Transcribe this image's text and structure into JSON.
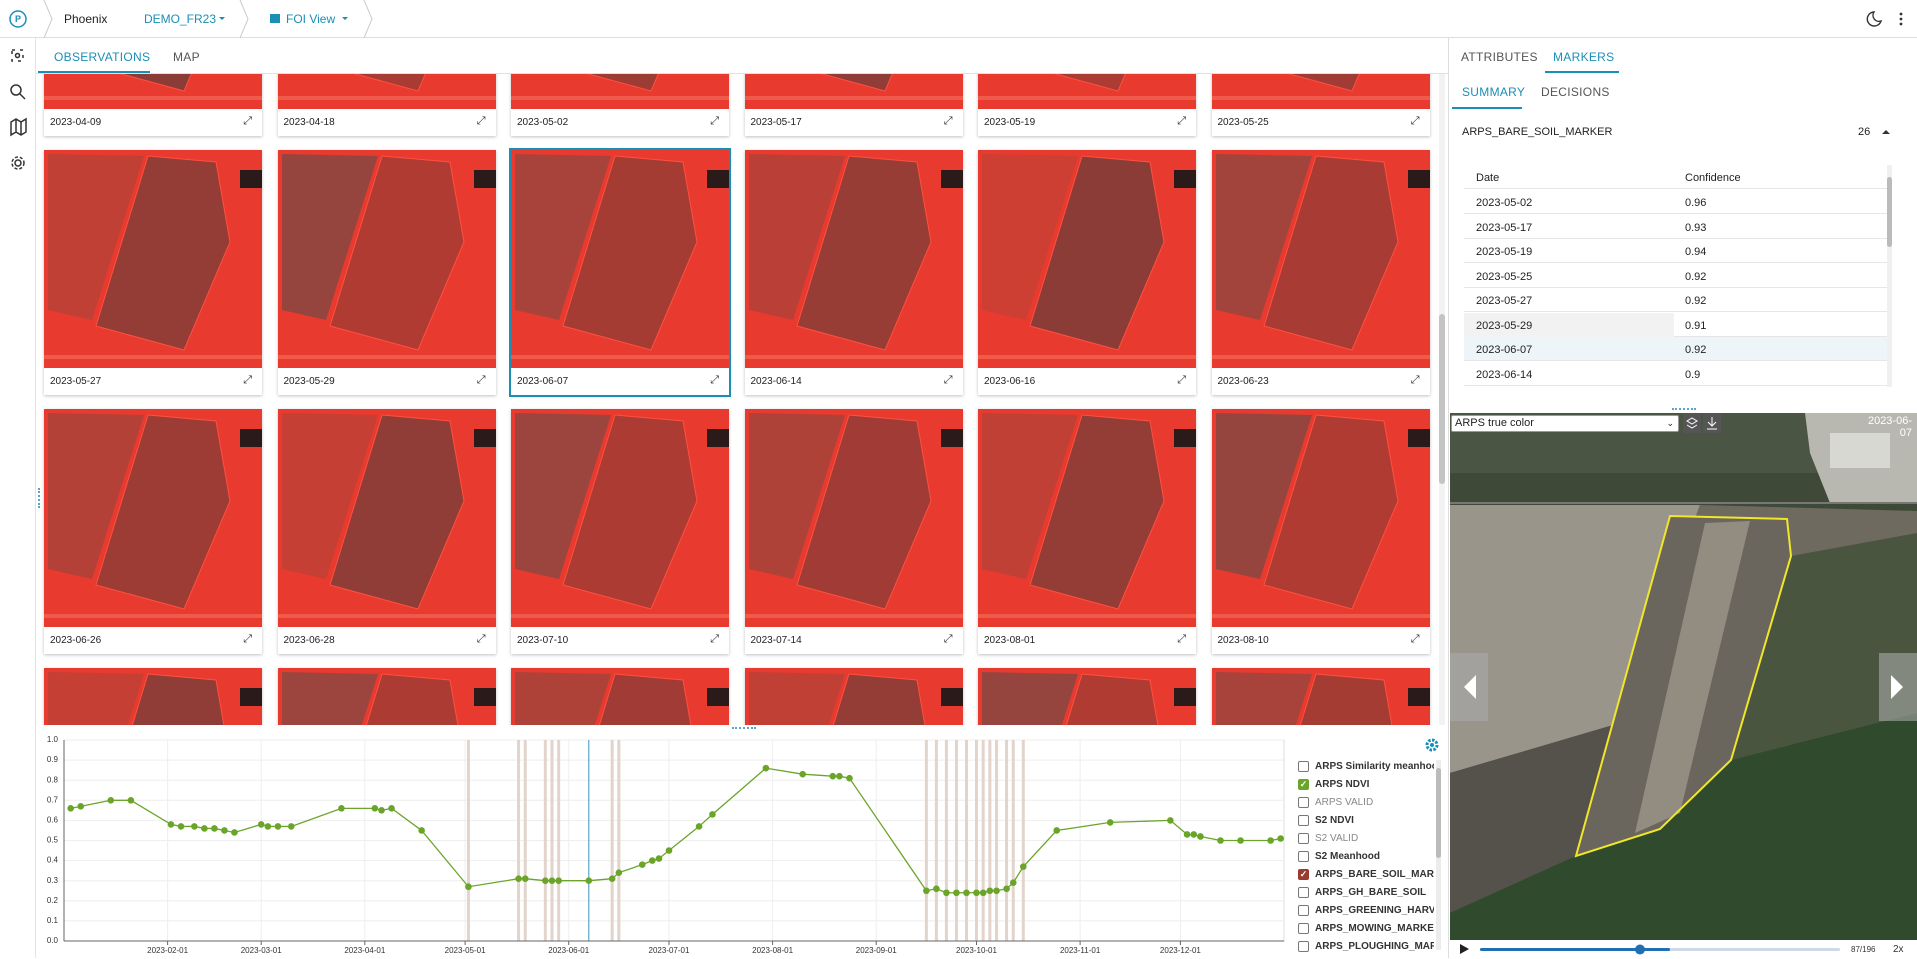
{
  "header": {
    "app": "Phoenix",
    "project": "DEMO_FR23",
    "view": "FOI View"
  },
  "main_tabs": [
    "OBSERVATIONS",
    "MAP"
  ],
  "observations": [
    "2023-04-09",
    "2023-04-18",
    "2023-05-02",
    "2023-05-17",
    "2023-05-19",
    "2023-05-25",
    "2023-05-27",
    "2023-05-29",
    "2023-06-07",
    "2023-06-14",
    "2023-06-16",
    "2023-06-23",
    "2023-06-26",
    "2023-06-28",
    "2023-07-10",
    "2023-07-14",
    "2023-08-01",
    "2023-08-10"
  ],
  "chart_data": {
    "type": "line",
    "x": [
      "2023-01-03",
      "2023-01-06",
      "2023-01-15",
      "2023-01-21",
      "2023-02-02",
      "2023-02-05",
      "2023-02-09",
      "2023-02-12",
      "2023-02-15",
      "2023-02-18",
      "2023-02-21",
      "2023-03-01",
      "2023-03-03",
      "2023-03-06",
      "2023-03-10",
      "2023-03-25",
      "2023-04-04",
      "2023-04-06",
      "2023-04-09",
      "2023-04-18",
      "2023-05-02",
      "2023-05-17",
      "2023-05-19",
      "2023-05-25",
      "2023-05-27",
      "2023-05-29",
      "2023-06-07",
      "2023-06-14",
      "2023-06-16",
      "2023-06-23",
      "2023-06-26",
      "2023-06-28",
      "2023-07-01",
      "2023-07-10",
      "2023-07-14",
      "2023-07-30",
      "2023-08-10",
      "2023-08-19",
      "2023-08-21",
      "2023-08-24",
      "2023-09-16",
      "2023-09-19",
      "2023-09-22",
      "2023-09-25",
      "2023-09-28",
      "2023-10-01",
      "2023-10-03",
      "2023-10-05",
      "2023-10-07",
      "2023-10-10",
      "2023-10-12",
      "2023-10-15",
      "2023-10-25",
      "2023-11-10",
      "2023-11-28",
      "2023-12-03",
      "2023-12-05",
      "2023-12-07",
      "2023-12-13",
      "2023-12-19",
      "2023-12-28",
      "2023-12-31"
    ],
    "series": [
      {
        "name": "ARPS NDVI",
        "color": "#6aa52a",
        "values": [
          0.66,
          0.67,
          0.7,
          0.7,
          0.58,
          0.57,
          0.57,
          0.56,
          0.56,
          0.55,
          0.54,
          0.58,
          0.57,
          0.57,
          0.57,
          0.66,
          0.66,
          0.65,
          0.66,
          0.55,
          0.27,
          0.31,
          0.31,
          0.3,
          0.3,
          0.3,
          0.3,
          0.31,
          0.34,
          0.38,
          0.4,
          0.41,
          0.45,
          0.57,
          0.63,
          0.86,
          0.83,
          0.82,
          0.82,
          0.81,
          0.25,
          0.26,
          0.24,
          0.24,
          0.24,
          0.24,
          0.24,
          0.25,
          0.25,
          0.26,
          0.29,
          0.37,
          0.55,
          0.59,
          0.6,
          0.53,
          0.53,
          0.52,
          0.5,
          0.5,
          0.5,
          0.51
        ]
      }
    ],
    "bare_soil_dates": [
      "2023-05-02",
      "2023-05-17",
      "2023-05-19",
      "2023-05-25",
      "2023-05-27",
      "2023-05-29",
      "2023-06-14",
      "2023-06-16",
      "2023-09-16",
      "2023-09-19",
      "2023-09-22",
      "2023-09-25",
      "2023-09-28",
      "2023-10-01",
      "2023-10-03",
      "2023-10-05",
      "2023-10-07",
      "2023-10-10",
      "2023-10-12",
      "2023-10-15"
    ],
    "band_color": "#e2d3cb",
    "selected": "2023-06-07",
    "selected_color": "#5aa6c8",
    "xlim": [
      "2023-01-01",
      "2024-01-01"
    ],
    "xticks": [
      "2023-02-01",
      "2023-03-01",
      "2023-04-01",
      "2023-05-01",
      "2023-06-01",
      "2023-07-01",
      "2023-08-01",
      "2023-09-01",
      "2023-10-01",
      "2023-11-01",
      "2023-12-01"
    ],
    "ylim": [
      0,
      1
    ],
    "yticks": [
      {
        "value": 0,
        "label": "0.0"
      },
      0.1,
      0.2,
      0.3,
      0.4,
      0.5,
      0.6,
      0.7,
      0.8,
      0.9,
      {
        "value": 1,
        "label": "1.0"
      }
    ],
    "grid": true,
    "legend": [
      {
        "label": "ARPS Similarity meanhood",
        "checked": false,
        "disabled": false
      },
      {
        "label": "ARPS NDVI",
        "checked": true,
        "disabled": false,
        "color": "#6aa52a"
      },
      {
        "label": "ARPS VALID",
        "checked": false,
        "disabled": true
      },
      {
        "label": "S2 NDVI",
        "checked": false,
        "disabled": false
      },
      {
        "label": "S2 VALID",
        "checked": false,
        "disabled": true
      },
      {
        "label": "S2 Meanhood",
        "checked": false,
        "disabled": false
      },
      {
        "label": "ARPS_BARE_SOIL_MARKER",
        "checked": true,
        "disabled": false,
        "color": "#9a3b30"
      },
      {
        "label": "ARPS_GH_BARE_SOIL",
        "checked": false,
        "disabled": false
      },
      {
        "label": "ARPS_GREENING_HARVEST",
        "checked": false,
        "disabled": false
      },
      {
        "label": "ARPS_MOWING_MARKER",
        "checked": false,
        "disabled": false
      },
      {
        "label": "ARPS_PLOUGHING_MARKER",
        "checked": false,
        "disabled": false
      }
    ]
  },
  "side_tabs": [
    "ATTRIBUTES",
    "MARKERS"
  ],
  "sub_tabs": [
    "SUMMARY",
    "DECISIONS"
  ],
  "marker": {
    "name": "ARPS_BARE_SOIL_MARKER",
    "count": 26,
    "columns": [
      "Date",
      "Confidence"
    ],
    "rows": [
      [
        "2023-05-02",
        0.96
      ],
      [
        "2023-05-17",
        0.93
      ],
      [
        "2023-05-19",
        0.94
      ],
      [
        "2023-05-25",
        0.92
      ],
      [
        "2023-05-27",
        0.92
      ],
      [
        "2023-05-29",
        0.91
      ],
      [
        "2023-06-07",
        0.92
      ],
      [
        "2023-06-14",
        0.9
      ]
    ]
  },
  "viewer": {
    "layer": "ARPS true color",
    "date": "2023-06-07",
    "frame": "87/196",
    "speed": "2x"
  }
}
